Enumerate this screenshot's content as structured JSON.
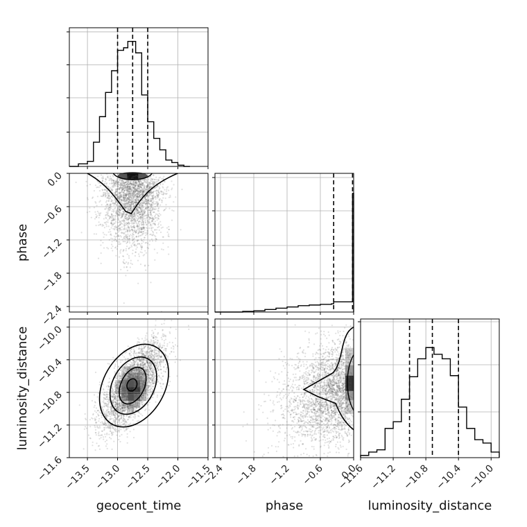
{
  "chart_data": {
    "type": "corner",
    "parameters": [
      "geocent_time",
      "phase",
      "luminosity_distance"
    ],
    "colors": {
      "lines": "#000000",
      "grid": "#b0b0b0",
      "scatter": "#555555",
      "fill_dark": "#000000"
    },
    "panels": {
      "geocent_time": {
        "type": "histogram",
        "xlim": [
          -13.8,
          -11.5
        ],
        "xticks": [
          "−13.5",
          "−13.0",
          "−12.5",
          "−12.0",
          "−11.5"
        ],
        "bins": [
          -13.8,
          -13.65,
          -13.5,
          -13.4,
          -13.3,
          -13.2,
          -13.1,
          -13.0,
          -12.9,
          -12.83,
          -12.76,
          -12.7,
          -12.6,
          -12.5,
          -12.4,
          -12.3,
          -12.2,
          -12.1,
          -12.0,
          -11.9,
          -11.8
        ],
        "counts": [
          0.0,
          0.02,
          0.04,
          0.19,
          0.39,
          0.58,
          0.75,
          0.91,
          0.93,
          0.98,
          0.98,
          0.89,
          0.56,
          0.35,
          0.22,
          0.13,
          0.05,
          0.03,
          0.01,
          0.0
        ],
        "quantiles": [
          -13.0,
          -12.75,
          -12.5
        ]
      },
      "phase": {
        "type": "histogram",
        "xlim": [
          -2.5,
          0.0
        ],
        "xticks": [
          "−2.4",
          "−1.8",
          "−1.2",
          "−0.6",
          "0.0"
        ],
        "bins": [
          -2.5,
          -2.4,
          -2.2,
          -2.0,
          -1.8,
          -1.6,
          -1.4,
          -1.2,
          -1.0,
          -0.8,
          -0.6,
          -0.4,
          -0.36,
          -0.2,
          -0.02,
          0.0
        ],
        "counts": [
          0.0,
          0.0,
          0.0,
          0.005,
          0.01,
          0.02,
          0.03,
          0.04,
          0.05,
          0.055,
          0.06,
          0.065,
          0.08,
          0.08,
          0.93
        ],
        "quantiles": [
          -0.36,
          -0.02
        ]
      },
      "luminosity_distance": {
        "type": "histogram",
        "xlim": [
          -11.6,
          -9.9
        ],
        "xticks": [
          "−11.6",
          "−11.2",
          "−10.8",
          "−10.4",
          "−10.0"
        ],
        "bins": [
          -11.6,
          -11.5,
          -11.4,
          -11.3,
          -11.2,
          -11.1,
          -11.0,
          -10.9,
          -10.8,
          -10.7,
          -10.6,
          -10.5,
          -10.4,
          -10.3,
          -10.2,
          -10.1,
          -10.0,
          -9.9
        ],
        "counts": [
          0.02,
          0.05,
          0.07,
          0.26,
          0.32,
          0.52,
          0.72,
          0.88,
          0.98,
          0.92,
          0.88,
          0.73,
          0.45,
          0.26,
          0.16,
          0.13,
          0.05
        ],
        "quantiles": [
          -11.0,
          -10.72,
          -10.4
        ]
      },
      "phase_vs_geocent_time": {
        "type": "scatter-contour",
        "x": "geocent_time",
        "y": "phase",
        "ylim": [
          -2.5,
          0.0
        ],
        "yticks": [
          "0.0",
          "−0.6",
          "−1.2",
          "−1.8",
          "−2.4"
        ]
      },
      "luminosity_distance_vs_geocent_time": {
        "type": "scatter-contour",
        "x": "geocent_time",
        "y": "luminosity_distance",
        "ylim": [
          -11.6,
          -9.9
        ],
        "yticks": [
          "−10.0",
          "−10.4",
          "−10.8",
          "−11.2",
          "−11.6"
        ]
      },
      "luminosity_distance_vs_phase": {
        "type": "scatter-contour",
        "x": "phase",
        "y": "luminosity_distance"
      }
    }
  }
}
